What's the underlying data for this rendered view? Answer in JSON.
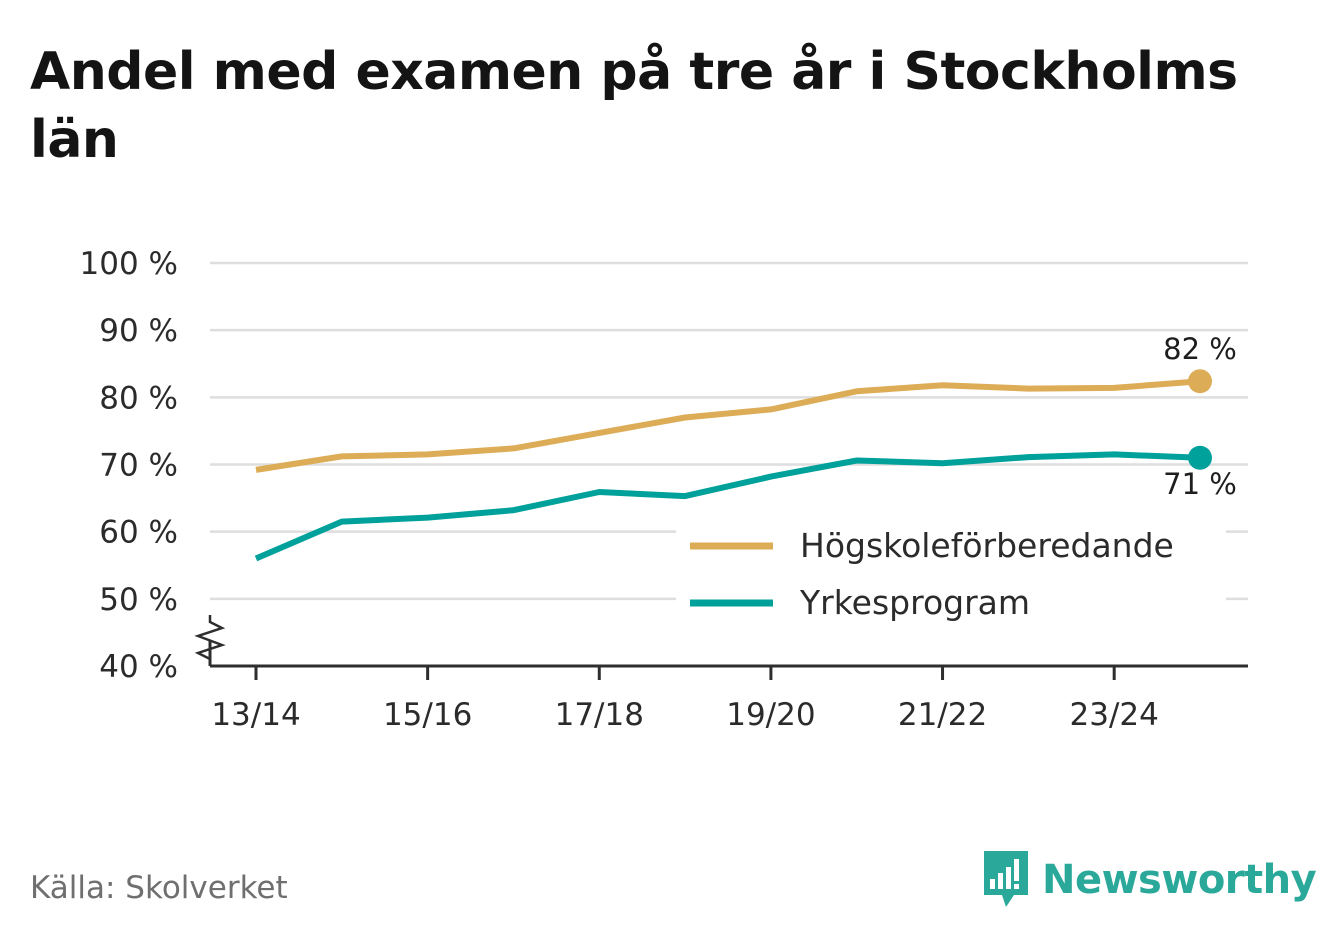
{
  "title": "Andel med examen på tre år i Stockholms län",
  "source": "Källa: Skolverket",
  "brand": {
    "name": "Newsworthy",
    "icon": "newsworthy-logo-icon",
    "color": "#2aa89a"
  },
  "chart_data": {
    "type": "line",
    "title": "Andel med examen på tre år i Stockholms län",
    "xlabel": "",
    "ylabel": "",
    "x": [
      "13/14",
      "14/15",
      "15/16",
      "16/17",
      "17/18",
      "18/19",
      "19/20",
      "20/21",
      "21/22",
      "22/23",
      "23/24",
      "24/25"
    ],
    "x_tick_labels": [
      "13/14",
      "15/16",
      "17/18",
      "19/20",
      "21/22",
      "23/24"
    ],
    "y_tick_labels": [
      "40 %",
      "50 %",
      "60 %",
      "70 %",
      "80 %",
      "90 %",
      "100 %"
    ],
    "y_ticks": [
      40,
      50,
      60,
      70,
      80,
      90,
      100
    ],
    "ylim": [
      40,
      100
    ],
    "axis_break": true,
    "grid": true,
    "legend_position": "bottom-right",
    "series": [
      {
        "name": "Högskoleförberedande",
        "color": "#dcac57",
        "values": [
          69.2,
          71.2,
          71.5,
          72.4,
          74.7,
          77.0,
          78.2,
          80.9,
          81.8,
          81.3,
          81.4,
          82.4
        ],
        "end_label": "82 %"
      },
      {
        "name": "Yrkesprogram",
        "color": "#00a19a",
        "values": [
          56.0,
          61.5,
          62.1,
          63.2,
          65.9,
          65.3,
          68.2,
          70.6,
          70.2,
          71.1,
          71.5,
          71.0
        ],
        "end_label": "71 %"
      }
    ]
  }
}
